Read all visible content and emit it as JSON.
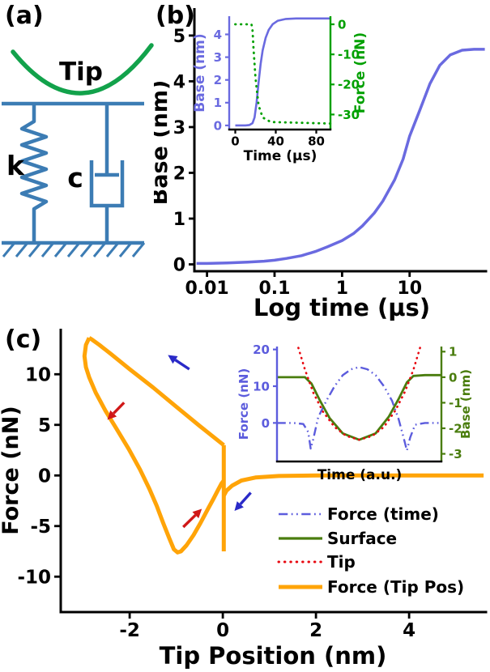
{
  "panels": {
    "a": {
      "label": "(a)",
      "tip": "Tip",
      "spring": "k",
      "damper": "c"
    },
    "b": {
      "label": "(b)"
    },
    "c": {
      "label": "(c)"
    }
  },
  "colors": {
    "schematic_blue": "#3c7cb4",
    "tip_green": "#12a24b",
    "base_curve_blue": "#6a6ae0",
    "force_green": "#00a000",
    "orange": "#ffa408",
    "surface_green": "#4a7d0e",
    "tip_red": "#e80810",
    "arrow_blue": "#2a2ac8",
    "arrow_red": "#d01818"
  },
  "legend": {
    "entries": [
      {
        "label": "Force (time)",
        "color": "#5c5cdd",
        "style": "dashdot",
        "width": 2.5
      },
      {
        "label": "Surface",
        "color": "#4a7d0e",
        "style": "solid",
        "width": 3.2
      },
      {
        "label": "Tip",
        "color": "#e80810",
        "style": "dotted",
        "width": 3
      },
      {
        "label": "Force (Tip Pos)",
        "color": "#ffa408",
        "style": "solid",
        "width": 5
      }
    ]
  },
  "chart_data": [
    {
      "id": "b_main",
      "type": "line",
      "xlabel": "Log time (µs)",
      "ylabel": "Base (nm)",
      "x_scale": "log",
      "xlim": [
        0.0065,
        135
      ],
      "ylim": [
        -0.15,
        5.6
      ],
      "x_ticks": [
        {
          "v": 0.01,
          "label": "0.01"
        },
        {
          "v": 0.1,
          "label": "0.1"
        },
        {
          "v": 1,
          "label": "1"
        },
        {
          "v": 10,
          "label": "10"
        }
      ],
      "y_ticks": [
        0,
        1,
        2,
        3,
        4,
        5
      ],
      "series": [
        {
          "name": "Base",
          "color": "#6a6ae0",
          "style": "solid",
          "width": 3.5,
          "x": [
            0.007,
            0.01,
            0.02,
            0.04,
            0.07,
            0.1,
            0.15,
            0.25,
            0.4,
            0.6,
            1,
            1.5,
            2,
            3,
            4,
            6,
            8,
            10,
            14,
            20,
            28,
            40,
            60,
            90,
            130
          ],
          "y": [
            0.02,
            0.02,
            0.03,
            0.05,
            0.07,
            0.09,
            0.13,
            0.19,
            0.28,
            0.38,
            0.52,
            0.68,
            0.84,
            1.12,
            1.38,
            1.85,
            2.3,
            2.8,
            3.35,
            3.95,
            4.35,
            4.58,
            4.68,
            4.7,
            4.7
          ]
        }
      ]
    },
    {
      "id": "b_inset",
      "type": "line",
      "xlabel": "Time (µs)",
      "ylabel_left": "Base (nm)",
      "ylabel_right": "Force (nN)",
      "xlim": [
        -6,
        94
      ],
      "ylim_left": [
        -0.18,
        4.8
      ],
      "ylim_right": [
        -35,
        2.7
      ],
      "x_ticks": [
        {
          "v": 0,
          "label": "0"
        },
        {
          "v": 40,
          "label": "40"
        },
        {
          "v": 80,
          "label": "80"
        }
      ],
      "y_ticks_left": [
        0,
        1,
        2,
        3,
        4
      ],
      "y_ticks_right": [
        0,
        -10,
        -20,
        -30
      ],
      "series": [
        {
          "name": "Base",
          "axis": "left",
          "color": "#6a6ae0",
          "style": "solid",
          "width": 2.6,
          "x": [
            0,
            5,
            10,
            14,
            17,
            19,
            21,
            23,
            25,
            27,
            30,
            33,
            37,
            42,
            50,
            60,
            80,
            94
          ],
          "y": [
            0,
            0,
            0,
            0.02,
            0.1,
            0.35,
            1.0,
            1.9,
            2.7,
            3.3,
            3.85,
            4.2,
            4.45,
            4.6,
            4.68,
            4.7,
            4.7,
            4.7
          ]
        },
        {
          "name": "Force",
          "axis": "right",
          "color": "#00a000",
          "style": "dotted",
          "width": 2.8,
          "x": [
            0,
            16,
            17,
            18,
            20,
            23,
            27,
            35,
            94
          ],
          "y": [
            0,
            0,
            -2,
            -8,
            -18,
            -27,
            -31,
            -32.5,
            -33
          ]
        }
      ]
    },
    {
      "id": "c_main",
      "type": "line",
      "xlabel": "Tip Position (nm)",
      "ylabel": "Force (nN)",
      "xlim": [
        -3.48,
        5.65
      ],
      "ylim": [
        -13.5,
        14.5
      ],
      "x_ticks": [
        {
          "v": -2,
          "label": "-2"
        },
        {
          "v": 0,
          "label": "0"
        },
        {
          "v": 2,
          "label": "2"
        },
        {
          "v": 4,
          "label": "4"
        }
      ],
      "y_ticks": [
        -10,
        -5,
        0,
        5,
        10
      ],
      "series": [
        {
          "name": "Force (Tip Pos)",
          "color": "#ffa408",
          "style": "solid",
          "width": 5,
          "segments": [
            {
              "x": [
                5.6,
                3.5,
                2,
                1.2,
                0.7,
                0.4,
                0.2,
                0.08,
                0.02
              ],
              "y": [
                0,
                0,
                0,
                -0.05,
                -0.2,
                -0.5,
                -1.0,
                -1.5,
                -2.0
              ]
            },
            {
              "x": [
                0.02,
                0.02
              ],
              "y": [
                -7.5,
                3.0
              ]
            },
            {
              "x": [
                0.02,
                -0.5,
                -1.0,
                -1.5,
                -2.0,
                -2.4,
                -2.65,
                -2.8,
                -2.87
              ],
              "y": [
                3.0,
                4.9,
                6.8,
                8.7,
                10.5,
                12.0,
                12.9,
                13.4,
                13.6
              ]
            },
            {
              "x": [
                -2.87,
                -2.94,
                -2.97,
                -2.94,
                -2.87,
                -2.73,
                -2.52,
                -2.28,
                -2.02,
                -1.78,
                -1.58,
                -1.42,
                -1.28,
                -1.15,
                -1.05,
                -0.97,
                -0.9,
                -0.78,
                -0.63,
                -0.48,
                -0.33,
                -0.2,
                -0.1,
                -0.03,
                0.02
              ],
              "y": [
                13.6,
                12.9,
                11.8,
                10.7,
                9.7,
                8.2,
                6.4,
                4.6,
                2.6,
                0.6,
                -1.3,
                -3.0,
                -4.7,
                -6.2,
                -7.3,
                -7.6,
                -7.5,
                -6.9,
                -5.9,
                -4.7,
                -3.4,
                -2.3,
                -1.4,
                -0.8,
                -0.5
              ]
            }
          ]
        }
      ],
      "arrows": [
        {
          "color": "#2a2ac8",
          "x_from": -0.72,
          "y_from": 10.5,
          "x_to": -1.18,
          "y_to": 11.9
        },
        {
          "color": "#2a2ac8",
          "x_from": 0.6,
          "y_from": -1.7,
          "x_to": 0.25,
          "y_to": -3.5
        },
        {
          "color": "#d01818",
          "x_from": -2.12,
          "y_from": 7.2,
          "x_to": -2.48,
          "y_to": 5.5
        },
        {
          "color": "#d01818",
          "x_from": -0.85,
          "y_from": -5.1,
          "x_to": -0.45,
          "y_to": -3.3
        }
      ]
    },
    {
      "id": "c_inset",
      "type": "line",
      "xlabel": "Time (a.u.)",
      "ylabel_left": "Force (nN)",
      "ylabel_right": "Base (nm)",
      "xlim": [
        0,
        1
      ],
      "ylim_left": [
        -10.5,
        20.8
      ],
      "ylim_right": [
        -3.3,
        1.2
      ],
      "x_ticks": [],
      "y_ticks_left": [
        0,
        10,
        20
      ],
      "y_ticks_right": [
        1,
        0,
        -1,
        -2,
        -3
      ],
      "series": [
        {
          "name": "Force (time)",
          "axis": "left",
          "color": "#5c5cdd",
          "style": "dashdot",
          "width": 2.4,
          "x": [
            0,
            0.1,
            0.16,
            0.19,
            0.205,
            0.22,
            0.25,
            0.3,
            0.35,
            0.4,
            0.45,
            0.5,
            0.55,
            0.6,
            0.65,
            0.7,
            0.74,
            0.77,
            0.79,
            0.81,
            0.84,
            0.9,
            1.0
          ],
          "y": [
            0,
            0,
            -0.3,
            -2.5,
            -7,
            -4.5,
            1.5,
            6,
            10,
            13,
            14.6,
            15.2,
            14.6,
            13,
            10,
            6,
            1,
            -4,
            -7.5,
            -4,
            -0.5,
            0,
            0
          ]
        },
        {
          "name": "Surface",
          "axis": "right",
          "color": "#4a7d0e",
          "style": "solid",
          "width": 2.8,
          "x": [
            0,
            0.1,
            0.17,
            0.21,
            0.26,
            0.32,
            0.4,
            0.5,
            0.6,
            0.68,
            0.74,
            0.79,
            0.83,
            0.9,
            1.0
          ],
          "y": [
            0,
            0,
            0,
            -0.25,
            -0.9,
            -1.6,
            -2.2,
            -2.45,
            -2.2,
            -1.55,
            -0.85,
            -0.2,
            0.05,
            0.08,
            0.08
          ]
        },
        {
          "name": "Tip",
          "axis": "right",
          "color": "#e80810",
          "style": "dotted",
          "width": 2.6,
          "x": [
            0.13,
            0.17,
            0.22,
            0.28,
            0.35,
            0.42,
            0.5,
            0.58,
            0.65,
            0.72,
            0.78,
            0.83,
            0.87
          ],
          "y": [
            1.15,
            0.3,
            -0.6,
            -1.35,
            -1.95,
            -2.3,
            -2.45,
            -2.3,
            -1.95,
            -1.3,
            -0.55,
            0.3,
            1.15
          ]
        }
      ]
    }
  ]
}
